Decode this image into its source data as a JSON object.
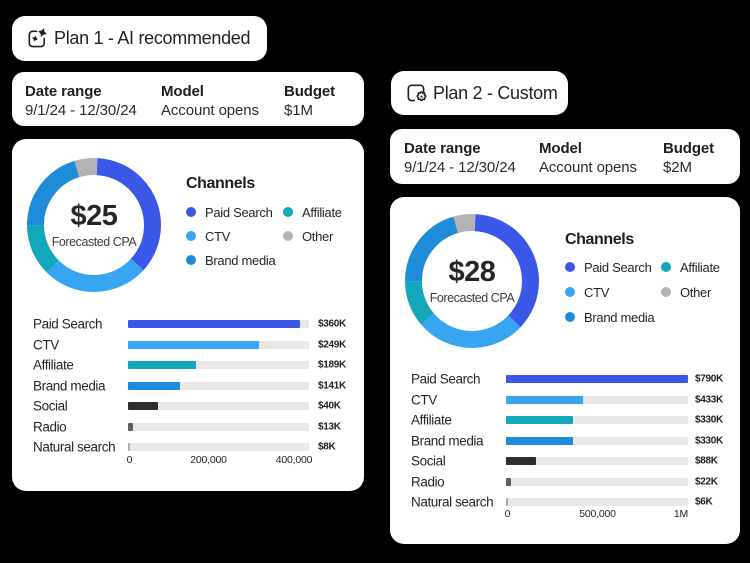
{
  "palette": {
    "paid_search": "#3b57e8",
    "ctv": "#38a5f2",
    "brand_media": "#1f8cd9",
    "affiliate": "#12a7ba",
    "other": "#b3b3b3",
    "social": "#2e2e2e",
    "radio": "#5e5e5e",
    "natural_search": "#ababab",
    "bar_track": "#e8e8e8",
    "card_bg": "#ffffff",
    "page_bg": "#000000"
  },
  "plan1": {
    "title": "Plan 1 - AI recommended",
    "title_icon": "ai-plan-icon",
    "meta": {
      "date_range_label": "Date range",
      "date_range_value": "9/1/24 - 12/30/24",
      "model_label": "Model",
      "model_value": "Account opens",
      "budget_label": "Budget",
      "budget_value": "$1M"
    },
    "cpa_value": "$25",
    "cpa_label": "Forecasted CPA",
    "channels_heading": "Channels",
    "legend": [
      {
        "label": "Paid Search",
        "color": "#3b57e8"
      },
      {
        "label": "CTV",
        "color": "#38a5f2"
      },
      {
        "label": "Brand media",
        "color": "#1f8cd9"
      },
      {
        "label": "Affiliate",
        "color": "#12a7ba"
      },
      {
        "label": "Other",
        "color": "#b3b3b3"
      }
    ],
    "donut": {
      "start_deg": 3,
      "ring": [
        {
          "channel": "Paid Search",
          "color": "#3b57e8",
          "sweep_deg": 129.6
        },
        {
          "channel": "CTV",
          "color": "#38a5f2",
          "sweep_deg": 92.4
        },
        {
          "channel": "Affiliate",
          "color": "#12a7ba",
          "sweep_deg": 45
        },
        {
          "channel": "Brand media",
          "color": "#1f8cd9",
          "sweep_deg": 73.4
        },
        {
          "channel": "Other",
          "color": "#b3b3b3",
          "sweep_deg": 19.6
        }
      ]
    },
    "bars": [
      {
        "label": "Paid Search",
        "value": "$360K",
        "color": "#3b57e8",
        "width": "95%"
      },
      {
        "label": "CTV",
        "value": "$249K",
        "color": "#38a5f2",
        "width": "72.4%"
      },
      {
        "label": "Affiliate",
        "value": "$189K",
        "color": "#12a7ba",
        "width": "37.6%"
      },
      {
        "label": "Brand media",
        "value": "$141K",
        "color": "#1f8cd9",
        "width": "28.7%"
      },
      {
        "label": "Social",
        "value": "$40K",
        "color": "#2e2e2e",
        "width": "16.6%"
      },
      {
        "label": "Radio",
        "value": "$13K",
        "color": "#5e5e5e",
        "width": "2.8%"
      },
      {
        "label": "Natural search",
        "value": "$8K",
        "color": "#ababab",
        "width": "1.2%"
      }
    ],
    "axis_ticks": [
      {
        "label": "0"
      },
      {
        "label": "200,000"
      },
      {
        "label": "400,000"
      }
    ]
  },
  "plan2": {
    "title": "Plan 2 - Custom",
    "title_icon": "custom-plan-icon",
    "meta": {
      "date_range_label": "Date range",
      "date_range_value": "9/1/24 - 12/30/24",
      "model_label": "Model",
      "model_value": "Account opens",
      "budget_label": "Budget",
      "budget_value": "$2M"
    },
    "cpa_value": "$28",
    "cpa_label": "Forecasted CPA",
    "channels_heading": "Channels",
    "legend": [
      {
        "label": "Paid Search",
        "color": "#3b57e8"
      },
      {
        "label": "CTV",
        "color": "#38a5f2"
      },
      {
        "label": "Brand media",
        "color": "#1f8cd9"
      },
      {
        "label": "Affiliate",
        "color": "#12a7ba"
      },
      {
        "label": "Other",
        "color": "#b3b3b3"
      }
    ],
    "donut": {
      "start_deg": 3,
      "ring": [
        {
          "channel": "Paid Search",
          "color": "#3b57e8",
          "sweep_deg": 130.6
        },
        {
          "channel": "CTV",
          "color": "#38a5f2",
          "sweep_deg": 96.4
        },
        {
          "channel": "Affiliate",
          "color": "#12a7ba",
          "sweep_deg": 40
        },
        {
          "channel": "Brand media",
          "color": "#1f8cd9",
          "sweep_deg": 74.3
        },
        {
          "channel": "Other",
          "color": "#b3b3b3",
          "sweep_deg": 18.7
        }
      ]
    },
    "bars": [
      {
        "label": "Paid Search",
        "value": "$790K",
        "color": "#3b57e8",
        "width": "100%"
      },
      {
        "label": "CTV",
        "value": "$433K",
        "color": "#38a5f2",
        "width": "42.3%"
      },
      {
        "label": "Affiliate",
        "value": "$330K",
        "color": "#12a7ba",
        "width": "37%"
      },
      {
        "label": "Brand media",
        "value": "$330K",
        "color": "#1f8cd9",
        "width": "36.8%"
      },
      {
        "label": "Social",
        "value": "$88K",
        "color": "#2e2e2e",
        "width": "16.5%"
      },
      {
        "label": "Radio",
        "value": "$22K",
        "color": "#5e5e5e",
        "width": "2.7%"
      },
      {
        "label": "Natural search",
        "value": "$6K",
        "color": "#ababab",
        "width": "1.2%"
      }
    ],
    "axis_ticks": [
      {
        "label": "0"
      },
      {
        "label": "500,000"
      },
      {
        "label": "1M"
      }
    ]
  },
  "chart_data": [
    {
      "type": "pie",
      "title": "Plan 1 - AI recommended channel mix",
      "center_value": "$25",
      "center_label": "Forecasted CPA",
      "legend_entries": [
        "Paid Search",
        "CTV",
        "Brand media",
        "Affiliate",
        "Other"
      ],
      "segments": [
        {
          "label": "Paid Search",
          "sweep_deg": 129.6
        },
        {
          "label": "CTV",
          "sweep_deg": 92.4
        },
        {
          "label": "Affiliate",
          "sweep_deg": 45
        },
        {
          "label": "Brand media",
          "sweep_deg": 73.4
        },
        {
          "label": "Other",
          "sweep_deg": 19.6
        }
      ]
    },
    {
      "type": "bar",
      "title": "Plan 1 - AI recommended spend by channel ($)",
      "categories": [
        "Paid Search",
        "CTV",
        "Affiliate",
        "Brand media",
        "Social",
        "Radio",
        "Natural search"
      ],
      "values": [
        360000,
        249000,
        189000,
        141000,
        40000,
        13000,
        8000
      ],
      "value_labels": [
        "$360K",
        "$249K",
        "$189K",
        "$141K",
        "$40K",
        "$13K",
        "$8K"
      ],
      "xlabel": "",
      "ylabel": "",
      "xlim": [
        0,
        450000
      ],
      "x_ticks": [
        "0",
        "200,000",
        "400,000"
      ],
      "orientation": "horizontal"
    },
    {
      "type": "pie",
      "title": "Plan 2 - Custom channel mix",
      "center_value": "$28",
      "center_label": "Forecasted CPA",
      "legend_entries": [
        "Paid Search",
        "CTV",
        "Brand media",
        "Affiliate",
        "Other"
      ],
      "segments": [
        {
          "label": "Paid Search",
          "sweep_deg": 130.6
        },
        {
          "label": "CTV",
          "sweep_deg": 96.4
        },
        {
          "label": "Affiliate",
          "sweep_deg": 40
        },
        {
          "label": "Brand media",
          "sweep_deg": 74.3
        },
        {
          "label": "Other",
          "sweep_deg": 18.7
        }
      ]
    },
    {
      "type": "bar",
      "title": "Plan 2 - Custom spend by channel ($)",
      "categories": [
        "Paid Search",
        "CTV",
        "Affiliate",
        "Brand media",
        "Social",
        "Radio",
        "Natural search"
      ],
      "values": [
        790000,
        433000,
        330000,
        330000,
        88000,
        22000,
        6000
      ],
      "value_labels": [
        "$790K",
        "$433K",
        "$330K",
        "$330K",
        "$88K",
        "$22K",
        "$6K"
      ],
      "xlabel": "",
      "ylabel": "",
      "xlim": [
        0,
        1000000
      ],
      "x_ticks": [
        "0",
        "500,000",
        "1M"
      ],
      "orientation": "horizontal"
    }
  ]
}
